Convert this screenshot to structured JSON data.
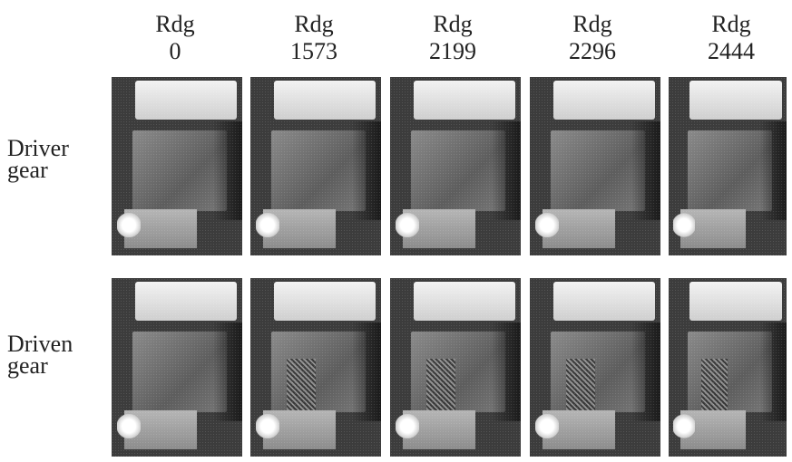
{
  "columns": [
    {
      "label": "Rdg",
      "value": "0"
    },
    {
      "label": "Rdg",
      "value": "1573"
    },
    {
      "label": "Rdg",
      "value": "2199"
    },
    {
      "label": "Rdg",
      "value": "2296"
    },
    {
      "label": "Rdg",
      "value": "2444"
    }
  ],
  "rows": [
    {
      "label_line1": "Driver",
      "label_line2": "gear"
    },
    {
      "label_line1": "Driven",
      "label_line2": "gear"
    }
  ]
}
